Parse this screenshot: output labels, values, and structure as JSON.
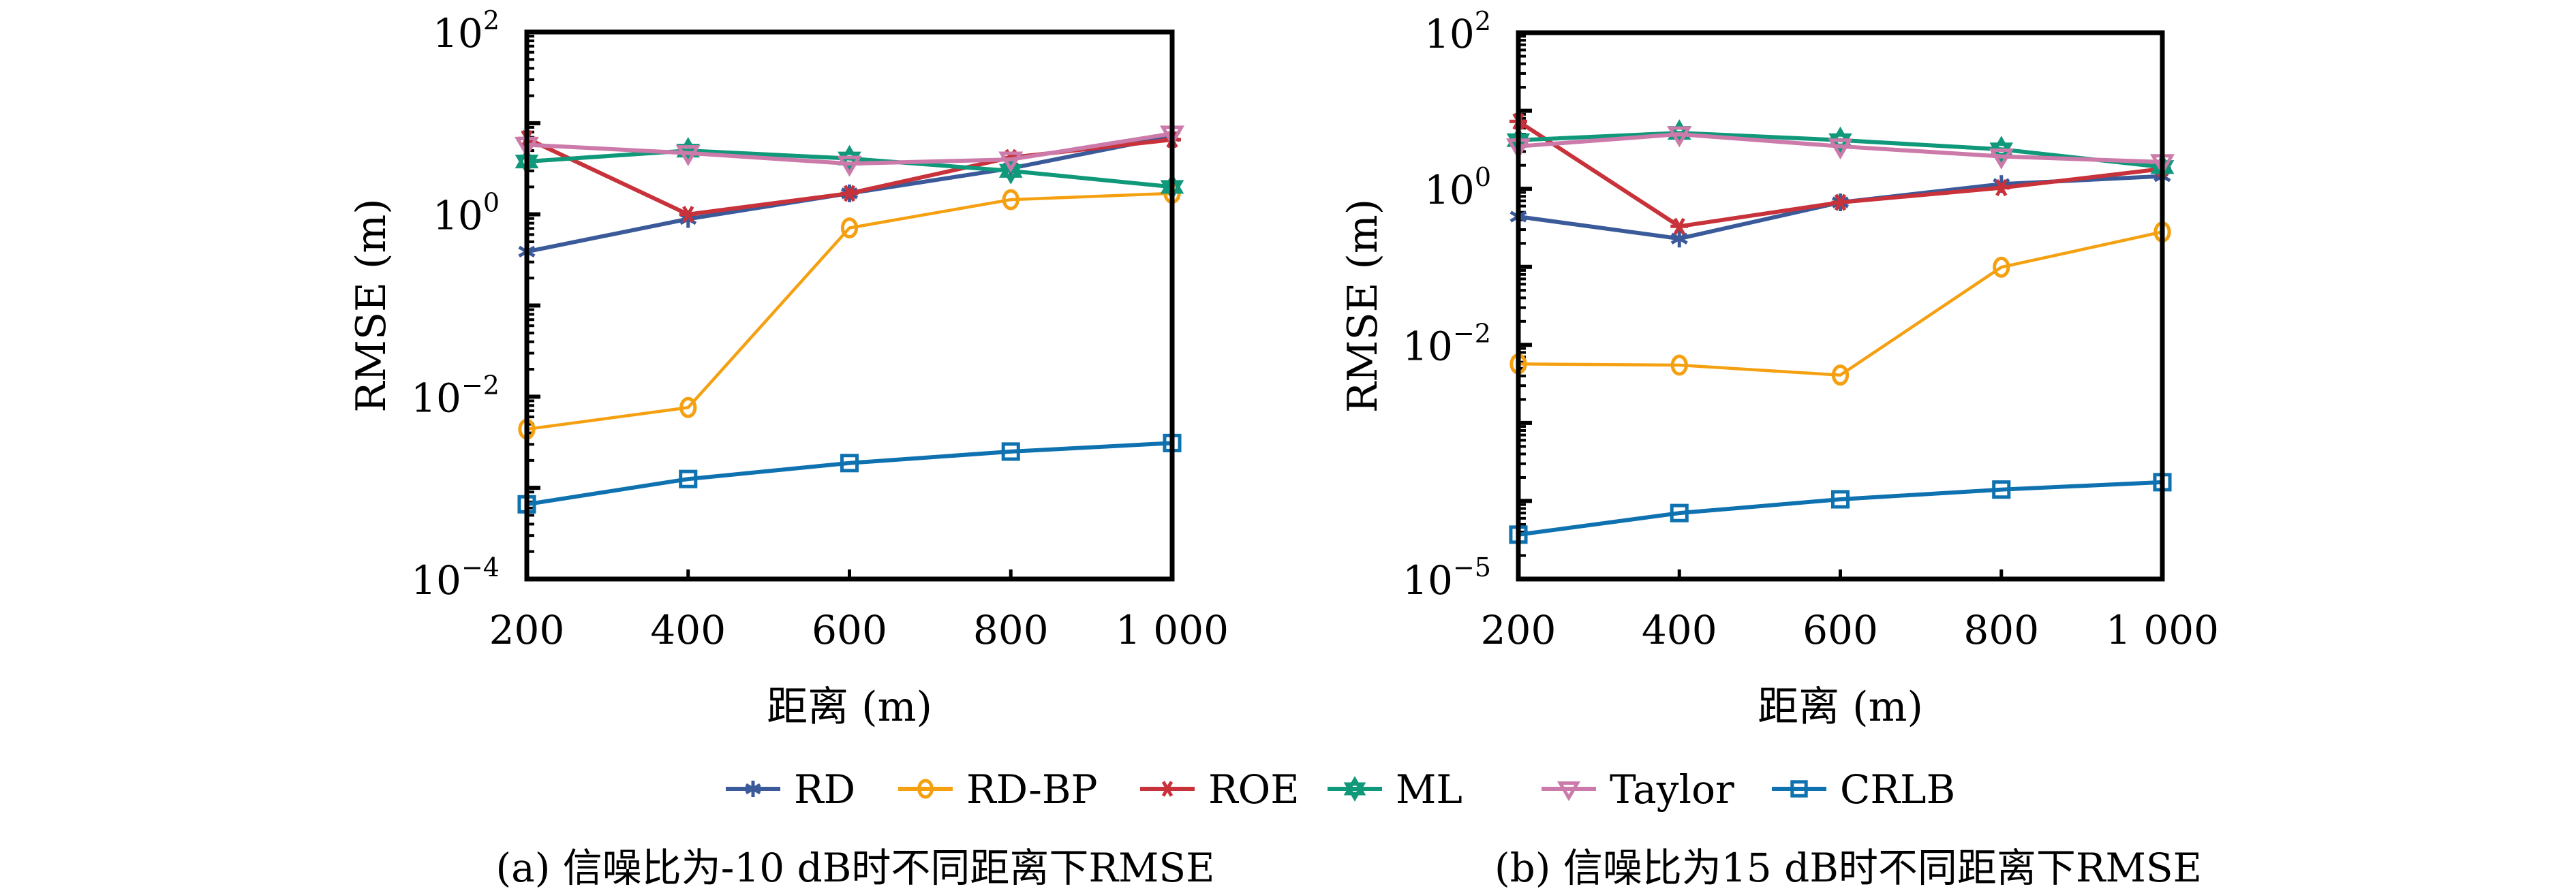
{
  "legend": [
    {
      "name": "RD",
      "color": "#3a5a9a",
      "marker": "asterisk"
    },
    {
      "name": "RD-BP",
      "color": "#f5a011",
      "marker": "circle"
    },
    {
      "name": "ROE",
      "color": "#c8323a",
      "marker": "x-star"
    },
    {
      "name": "ML",
      "color": "#10987a",
      "marker": "hexagram"
    },
    {
      "name": "Taylor",
      "color": "#cc7aaa",
      "marker": "triangle-down"
    },
    {
      "name": "CRLB",
      "color": "#0f72b0",
      "marker": "square"
    }
  ],
  "chart_data": [
    {
      "type": "line",
      "id": "a",
      "caption": "(a) 信噪比为-10 dB时不同距离下RMSE",
      "xlabel": "距离 (m)",
      "ylabel": "RMSE (m)",
      "yscale": "log",
      "x": [
        200,
        400,
        600,
        800,
        1000
      ],
      "xtick_labels": [
        "200",
        "400",
        "600",
        "800",
        "1 000"
      ],
      "ylim": [
        0.0001,
        100
      ],
      "ytick_labels": [
        {
          "value": 100,
          "base": "10",
          "exp": "2"
        },
        {
          "value": 1,
          "base": "10",
          "exp": "0"
        },
        {
          "value": 0.01,
          "base": "10",
          "exp": "−2"
        },
        {
          "value": 0.0001,
          "base": "10",
          "exp": "−4"
        }
      ],
      "grid": false,
      "series": [
        {
          "name": "RD",
          "values": [
            0.39,
            0.89,
            1.7,
            3.2,
            7.2
          ]
        },
        {
          "name": "RD-BP",
          "values": [
            0.0044,
            0.0076,
            0.71,
            1.45,
            1.7
          ]
        },
        {
          "name": "ROE",
          "values": [
            6.8,
            1.0,
            1.7,
            4.2,
            6.6
          ]
        },
        {
          "name": "ML",
          "values": [
            3.8,
            5.0,
            4.1,
            3.0,
            2.0
          ]
        },
        {
          "name": "Taylor",
          "values": [
            5.8,
            4.7,
            3.6,
            4.0,
            7.7
          ]
        },
        {
          "name": "CRLB",
          "values": [
            0.00066,
            0.00125,
            0.00187,
            0.0025,
            0.0031
          ]
        }
      ]
    },
    {
      "type": "line",
      "id": "b",
      "caption": "(b) 信噪比为15 dB时不同距离下RMSE",
      "xlabel": "距离 (m)",
      "ylabel": "RMSE (m)",
      "yscale": "log",
      "x": [
        200,
        400,
        600,
        800,
        1000
      ],
      "xtick_labels": [
        "200",
        "400",
        "600",
        "800",
        "1 000"
      ],
      "ylim": [
        1e-05,
        100
      ],
      "ytick_labels": [
        {
          "value": 100,
          "base": "10",
          "exp": "2"
        },
        {
          "value": 1,
          "base": "10",
          "exp": "0"
        },
        {
          "value": 0.01,
          "base": "10",
          "exp": "−2"
        },
        {
          "value": 1e-05,
          "base": "10",
          "exp": "−5"
        }
      ],
      "grid": false,
      "series": [
        {
          "name": "RD",
          "values": [
            0.44,
            0.23,
            0.67,
            1.15,
            1.45
          ]
        },
        {
          "name": "RD-BP",
          "values": [
            0.0057,
            0.0055,
            0.0041,
            0.099,
            0.28
          ]
        },
        {
          "name": "ROE",
          "values": [
            7.3,
            0.33,
            0.67,
            1.03,
            1.8
          ]
        },
        {
          "name": "ML",
          "values": [
            4.2,
            5.2,
            4.2,
            3.2,
            1.9
          ]
        },
        {
          "name": "Taylor",
          "values": [
            3.5,
            5.0,
            3.5,
            2.6,
            2.2
          ]
        },
        {
          "name": "CRLB",
          "values": [
            3.7e-05,
            7e-05,
            0.000105,
            0.00014,
            0.000174
          ]
        }
      ]
    }
  ]
}
